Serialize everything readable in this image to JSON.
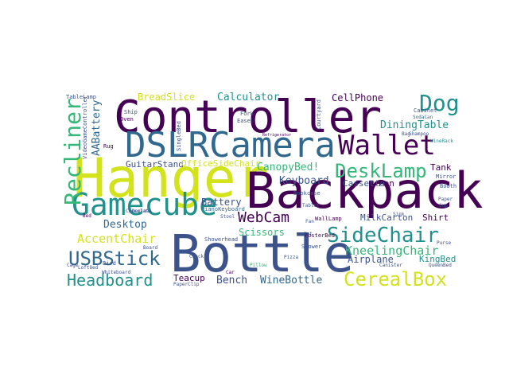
{
  "palette": {
    "darkPurple": "#440154",
    "indigo": "#3b528b",
    "blue": "#31688e",
    "teal": "#21918c",
    "green": "#35b779",
    "lime": "#90d743",
    "yellow": "#d2e21b"
  },
  "words": [
    {
      "text": "Controller",
      "color": "#440154"
    },
    {
      "text": "DSLRCamera",
      "color": "#31688e"
    },
    {
      "text": "Hanger",
      "color": "#d2e21b"
    },
    {
      "text": "Backpack",
      "color": "#440154"
    },
    {
      "text": "Bottle",
      "color": "#3b528b"
    },
    {
      "text": "Gamecube",
      "color": "#21918c"
    },
    {
      "text": "Wallet",
      "color": "#440154"
    },
    {
      "text": "Recliner",
      "color": "#35b779"
    },
    {
      "text": "Dog",
      "color": "#21918c"
    },
    {
      "text": "DeskLamp",
      "color": "#35b779"
    },
    {
      "text": "SideChair",
      "color": "#21918c"
    },
    {
      "text": "CerealBox",
      "color": "#d2e21b"
    },
    {
      "text": "Headboard",
      "color": "#21918c"
    },
    {
      "text": "USBStick",
      "color": "#31688e"
    },
    {
      "text": "WebCam",
      "color": "#440154"
    },
    {
      "text": "AccentChair",
      "color": "#d2e21b"
    },
    {
      "text": "KneelingChair",
      "color": "#35b779"
    },
    {
      "text": "Calculator",
      "color": "#21918c"
    },
    {
      "text": "CanopyBed!",
      "color": "#35b779"
    },
    {
      "text": "DiningTable",
      "color": "#21918c"
    },
    {
      "text": "AABattery",
      "color": "#31688e"
    },
    {
      "text": "BreadSlice",
      "color": "#d2e21b"
    },
    {
      "text": "CellPhone",
      "color": "#440154"
    },
    {
      "text": "Keyboard",
      "color": "#3b528b"
    },
    {
      "text": "Desktop",
      "color": "#31688e"
    },
    {
      "text": "Battery",
      "color": "#3b528b"
    },
    {
      "text": "Scissors",
      "color": "#35b779"
    },
    {
      "text": "Airplane",
      "color": "#3b528b"
    },
    {
      "text": "KingBed",
      "color": "#21918c"
    },
    {
      "text": "Bench",
      "color": "#3b528b"
    },
    {
      "text": "WineBottle",
      "color": "#31688e"
    },
    {
      "text": "Teacup",
      "color": "#440154"
    },
    {
      "text": "GuitarStand",
      "color": "#3b528b"
    },
    {
      "text": "OfficeSideChair",
      "color": "#d2e21b"
    },
    {
      "text": "Cassette",
      "color": "#3b528b"
    },
    {
      "text": "Pen",
      "color": "#440154"
    },
    {
      "text": "MilkCarton",
      "color": "#3b528b"
    },
    {
      "text": "Shirt",
      "color": "#440154"
    },
    {
      "text": "Tank",
      "color": "#440154"
    },
    {
      "text": "TableLamp",
      "color": "#3b528b"
    },
    {
      "text": "VideoGameController",
      "color": "#3b528b"
    },
    {
      "text": "Whiteboard",
      "color": "#3b528b"
    },
    {
      "text": "Chocolate",
      "color": "#3b528b"
    },
    {
      "text": "PianoKeyboard",
      "color": "#31688e"
    },
    {
      "text": "Showerhead",
      "color": "#3b528b"
    },
    {
      "text": "PosterBed",
      "color": "#440154"
    },
    {
      "text": "SodaCan",
      "color": "#31688e"
    },
    {
      "text": "Courtyard",
      "color": "#3b528b"
    },
    {
      "text": "Fork",
      "color": "#3b528b"
    },
    {
      "text": "Bookcase",
      "color": "#3b528b"
    },
    {
      "text": "WallLamp",
      "color": "#440154"
    },
    {
      "text": "Shower",
      "color": "#3b528b"
    },
    {
      "text": "Cabinet",
      "color": "#3b528b"
    },
    {
      "text": "Bird",
      "color": "#3b528b"
    },
    {
      "text": "Rug",
      "color": "#440154"
    },
    {
      "text": "Ship",
      "color": "#3b528b"
    },
    {
      "text": "Oven",
      "color": "#440154"
    },
    {
      "text": "SingleBed",
      "color": "#3b528b"
    },
    {
      "text": "Easel",
      "color": "#3b528b"
    },
    {
      "text": "Mirror",
      "color": "#3b528b"
    },
    {
      "text": "Booth",
      "color": "#3b528b"
    },
    {
      "text": "Purse",
      "color": "#3b528b"
    },
    {
      "text": "Canister",
      "color": "#3b528b"
    },
    {
      "text": "QueenBed",
      "color": "#3b528b"
    },
    {
      "text": "PaperClip",
      "color": "#3b528b"
    },
    {
      "text": "Loft8ed",
      "color": "#3b528b"
    },
    {
      "text": "Cage",
      "color": "#3b528b"
    },
    {
      "text": "Refrigerator",
      "color": "#440154"
    },
    {
      "text": "Car",
      "color": "#440154"
    },
    {
      "text": "Stool",
      "color": "#3b528b"
    },
    {
      "text": "Clock",
      "color": "#3b528b"
    },
    {
      "text": "Bed",
      "color": "#440154"
    },
    {
      "text": "Shampoo",
      "color": "#3b528b"
    },
    {
      "text": "WineRack",
      "color": "#21918c"
    },
    {
      "text": "Bag",
      "color": "#3b528b"
    },
    {
      "text": "Board",
      "color": "#3b528b"
    },
    {
      "text": "Decimal",
      "color": "#3b528b"
    },
    {
      "text": "Tablet",
      "color": "#3b528b"
    },
    {
      "text": "Pizza",
      "color": "#3b528b"
    },
    {
      "text": "Fan",
      "color": "#3b528b"
    },
    {
      "text": "Pot",
      "color": "#3b528b"
    },
    {
      "text": "Paper",
      "color": "#3b528b"
    },
    {
      "text": "Cup",
      "color": "#3b528b"
    },
    {
      "text": "Pillow",
      "color": "#35b779"
    },
    {
      "text": "Sink",
      "color": "#3b528b"
    }
  ]
}
